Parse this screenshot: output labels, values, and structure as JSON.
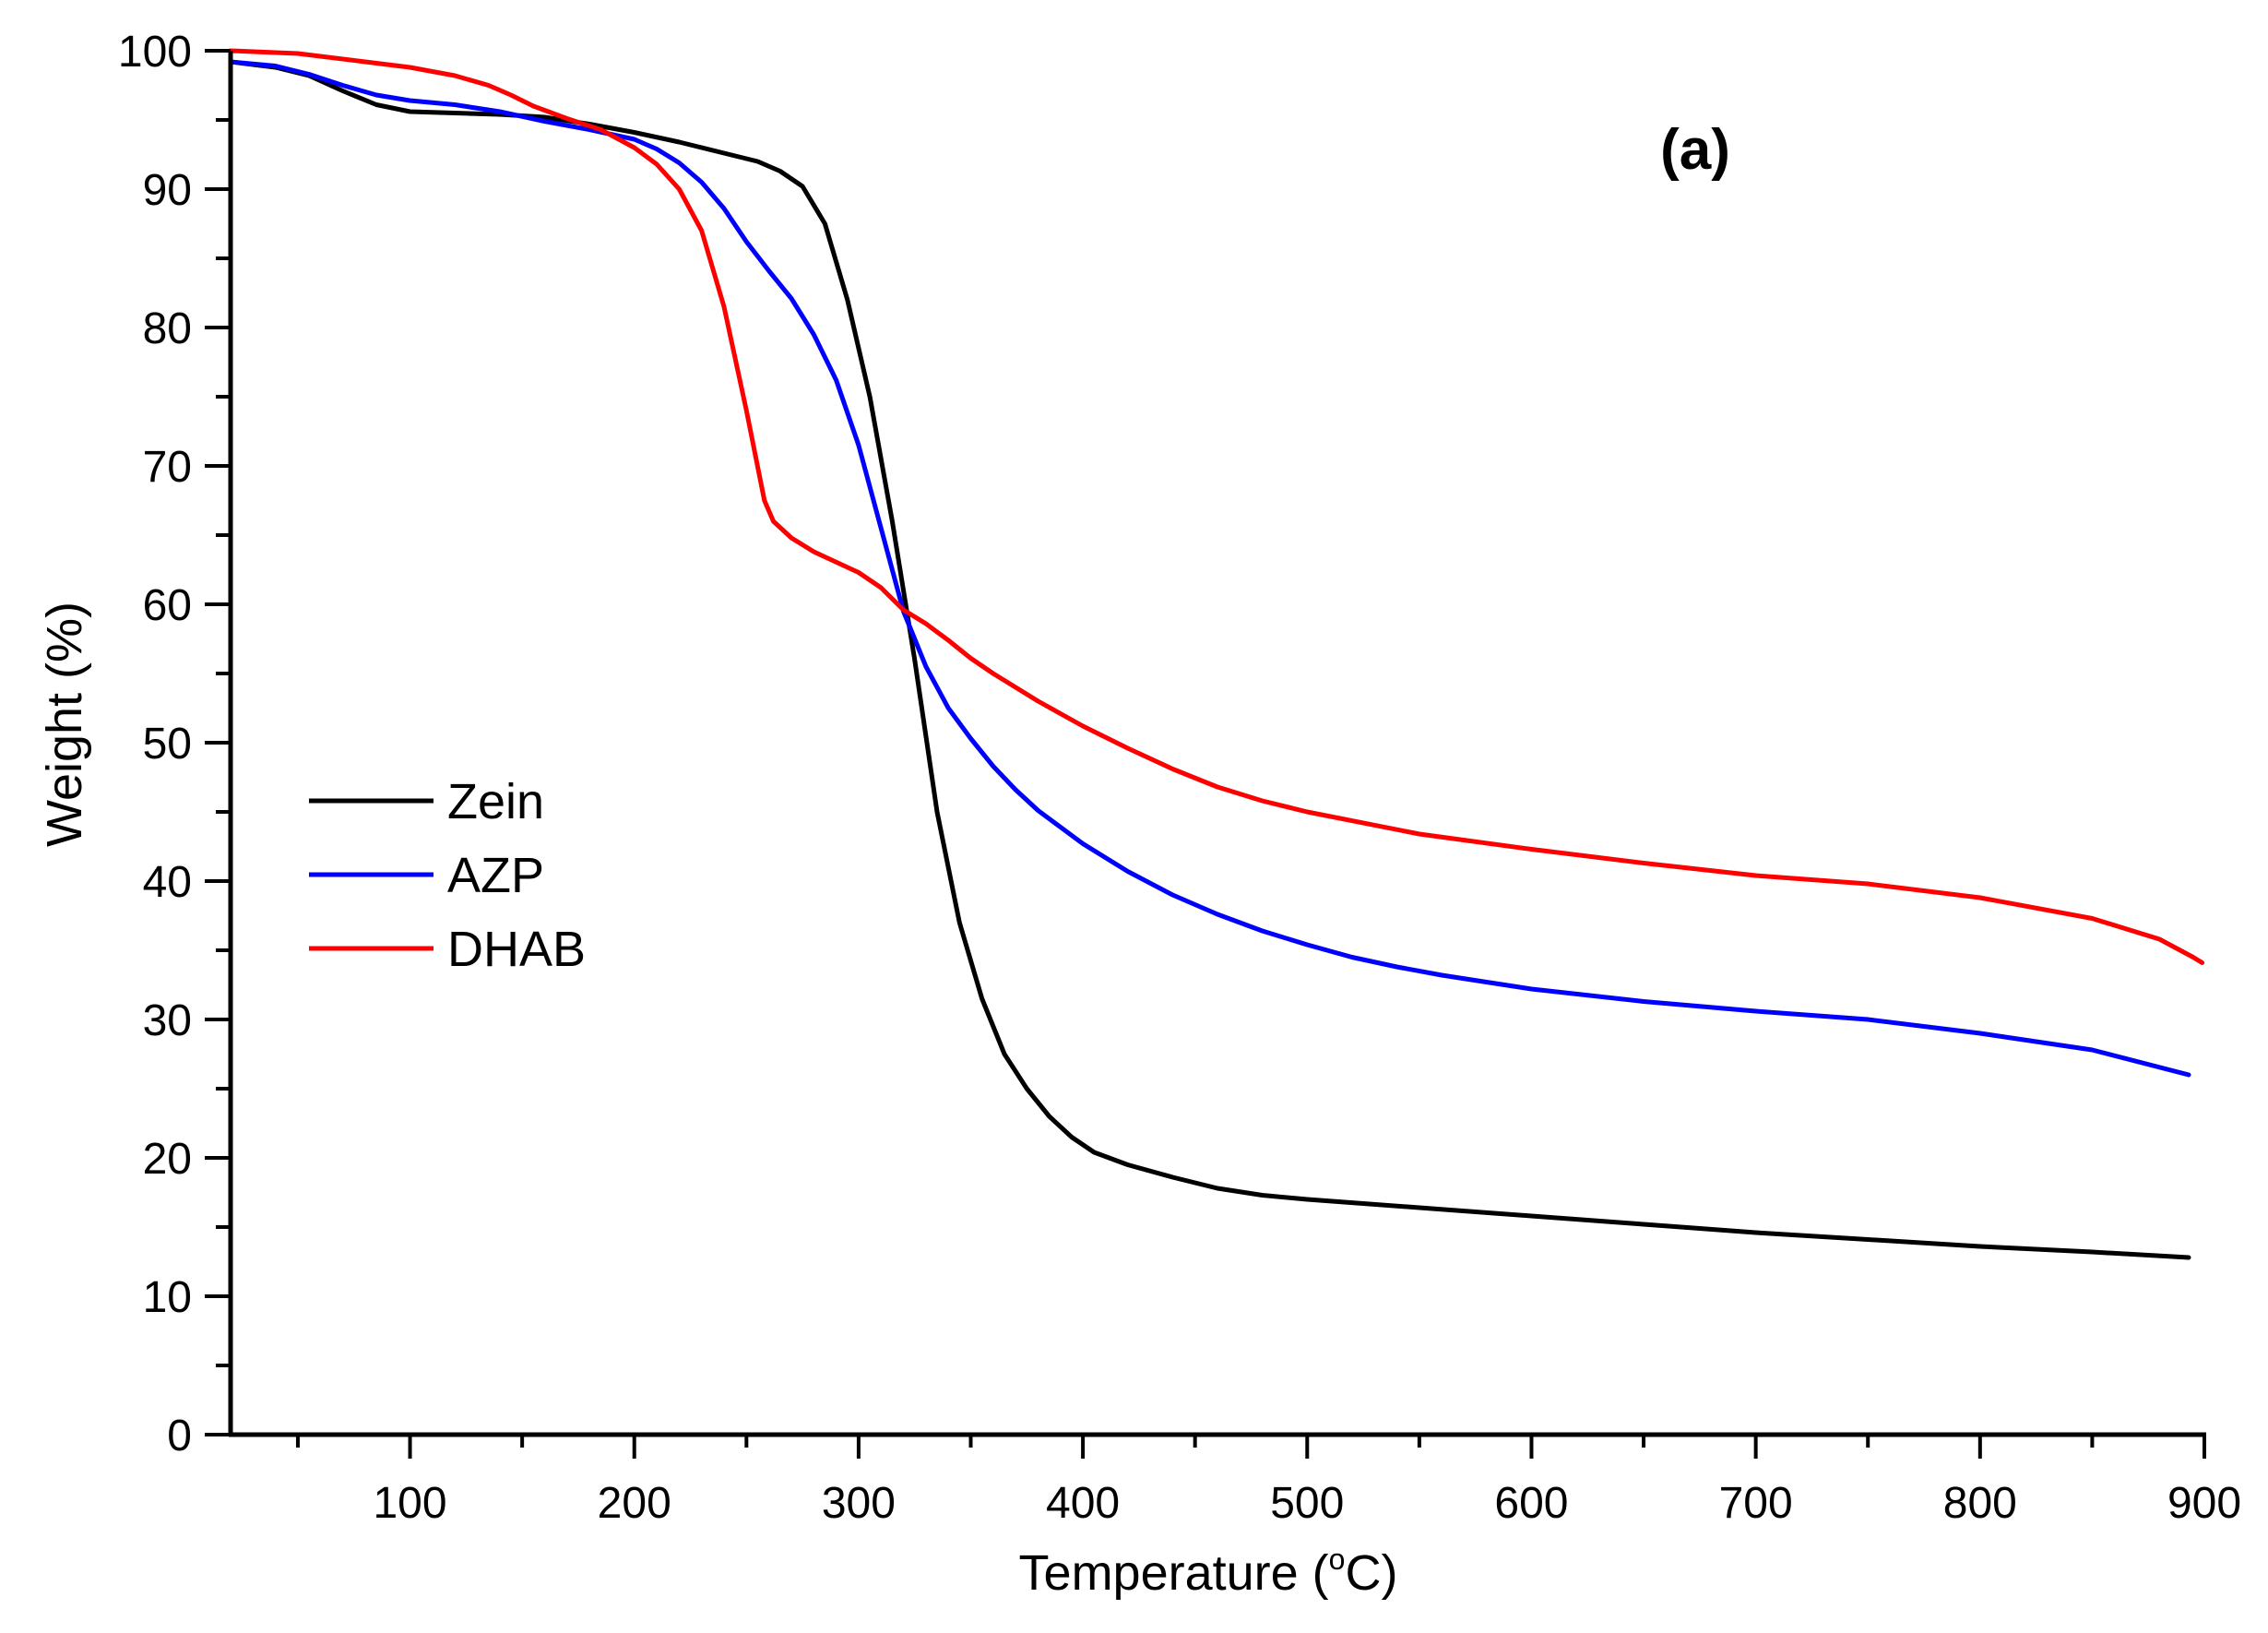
{
  "chart_data": {
    "type": "line",
    "annotation": "(a)",
    "xlabel": "Temperature (",
    "xlabel_degree": "o",
    "xlabel_unit": "C)",
    "ylabel": "Weight (%)",
    "xlim": [
      20,
      900
    ],
    "ylim": [
      0,
      100
    ],
    "x_ticks": [
      100,
      200,
      300,
      400,
      500,
      600,
      700,
      800,
      900
    ],
    "x_minor_ticks": [
      50,
      150,
      250,
      350,
      450,
      550,
      650,
      750,
      850
    ],
    "y_ticks": [
      0,
      10,
      20,
      30,
      40,
      50,
      60,
      70,
      80,
      90,
      100
    ],
    "y_minor_ticks": [
      5,
      15,
      25,
      35,
      45,
      55,
      65,
      75,
      85,
      95
    ],
    "grid": false,
    "legend_position": "middle-left",
    "series": [
      {
        "name": "Zein",
        "color": "#000000",
        "points": [
          [
            20,
            99.2
          ],
          [
            40,
            98.8
          ],
          [
            55,
            98.2
          ],
          [
            70,
            97.1
          ],
          [
            85,
            96.1
          ],
          [
            100,
            95.6
          ],
          [
            120,
            95.5
          ],
          [
            140,
            95.4
          ],
          [
            160,
            95.2
          ],
          [
            180,
            94.7
          ],
          [
            200,
            94.1
          ],
          [
            220,
            93.4
          ],
          [
            240,
            92.6
          ],
          [
            255,
            92.0
          ],
          [
            265,
            91.3
          ],
          [
            275,
            90.2
          ],
          [
            285,
            87.5
          ],
          [
            295,
            82.0
          ],
          [
            305,
            75.0
          ],
          [
            315,
            66.0
          ],
          [
            325,
            56.0
          ],
          [
            335,
            45.0
          ],
          [
            345,
            37.0
          ],
          [
            355,
            31.5
          ],
          [
            365,
            27.5
          ],
          [
            375,
            25.0
          ],
          [
            385,
            23.0
          ],
          [
            395,
            21.5
          ],
          [
            405,
            20.4
          ],
          [
            420,
            19.5
          ],
          [
            440,
            18.6
          ],
          [
            460,
            17.8
          ],
          [
            480,
            17.3
          ],
          [
            500,
            17.0
          ],
          [
            550,
            16.4
          ],
          [
            600,
            15.8
          ],
          [
            650,
            15.2
          ],
          [
            700,
            14.6
          ],
          [
            750,
            14.1
          ],
          [
            800,
            13.6
          ],
          [
            850,
            13.2
          ],
          [
            893,
            12.8
          ]
        ]
      },
      {
        "name": "AZP",
        "color": "#0000ff",
        "points": [
          [
            20,
            99.2
          ],
          [
            40,
            98.9
          ],
          [
            55,
            98.3
          ],
          [
            70,
            97.5
          ],
          [
            85,
            96.8
          ],
          [
            100,
            96.4
          ],
          [
            120,
            96.1
          ],
          [
            140,
            95.6
          ],
          [
            160,
            94.9
          ],
          [
            180,
            94.3
          ],
          [
            200,
            93.6
          ],
          [
            210,
            92.9
          ],
          [
            220,
            91.9
          ],
          [
            230,
            90.5
          ],
          [
            240,
            88.6
          ],
          [
            250,
            86.2
          ],
          [
            260,
            84.1
          ],
          [
            270,
            82.1
          ],
          [
            280,
            79.5
          ],
          [
            290,
            76.2
          ],
          [
            300,
            71.5
          ],
          [
            310,
            65.5
          ],
          [
            320,
            59.5
          ],
          [
            330,
            55.5
          ],
          [
            340,
            52.5
          ],
          [
            350,
            50.3
          ],
          [
            360,
            48.3
          ],
          [
            370,
            46.6
          ],
          [
            380,
            45.1
          ],
          [
            390,
            43.9
          ],
          [
            400,
            42.7
          ],
          [
            420,
            40.7
          ],
          [
            440,
            39.0
          ],
          [
            460,
            37.6
          ],
          [
            480,
            36.4
          ],
          [
            500,
            35.4
          ],
          [
            520,
            34.5
          ],
          [
            540,
            33.8
          ],
          [
            560,
            33.2
          ],
          [
            580,
            32.7
          ],
          [
            600,
            32.2
          ],
          [
            650,
            31.3
          ],
          [
            700,
            30.6
          ],
          [
            750,
            30.0
          ],
          [
            800,
            29.0
          ],
          [
            850,
            27.8
          ],
          [
            893,
            26.0
          ]
        ]
      },
      {
        "name": "DHAB",
        "color": "#ff0000",
        "points": [
          [
            20,
            100.0
          ],
          [
            50,
            99.8
          ],
          [
            80,
            99.2
          ],
          [
            100,
            98.8
          ],
          [
            120,
            98.2
          ],
          [
            135,
            97.5
          ],
          [
            145,
            96.8
          ],
          [
            155,
            96.0
          ],
          [
            170,
            95.1
          ],
          [
            185,
            94.3
          ],
          [
            200,
            93.0
          ],
          [
            210,
            91.8
          ],
          [
            220,
            90.0
          ],
          [
            230,
            87.0
          ],
          [
            240,
            81.5
          ],
          [
            250,
            74.0
          ],
          [
            258,
            67.5
          ],
          [
            262,
            66.0
          ],
          [
            270,
            64.8
          ],
          [
            280,
            63.8
          ],
          [
            300,
            62.3
          ],
          [
            310,
            61.2
          ],
          [
            320,
            59.6
          ],
          [
            330,
            58.6
          ],
          [
            340,
            57.4
          ],
          [
            350,
            56.1
          ],
          [
            360,
            55.0
          ],
          [
            380,
            53.0
          ],
          [
            400,
            51.2
          ],
          [
            420,
            49.6
          ],
          [
            440,
            48.1
          ],
          [
            460,
            46.8
          ],
          [
            480,
            45.8
          ],
          [
            500,
            45.0
          ],
          [
            550,
            43.4
          ],
          [
            600,
            42.3
          ],
          [
            650,
            41.3
          ],
          [
            700,
            40.4
          ],
          [
            750,
            39.8
          ],
          [
            800,
            38.8
          ],
          [
            850,
            37.3
          ],
          [
            880,
            35.8
          ],
          [
            895,
            34.5
          ],
          [
            899,
            34.1
          ]
        ]
      }
    ]
  }
}
